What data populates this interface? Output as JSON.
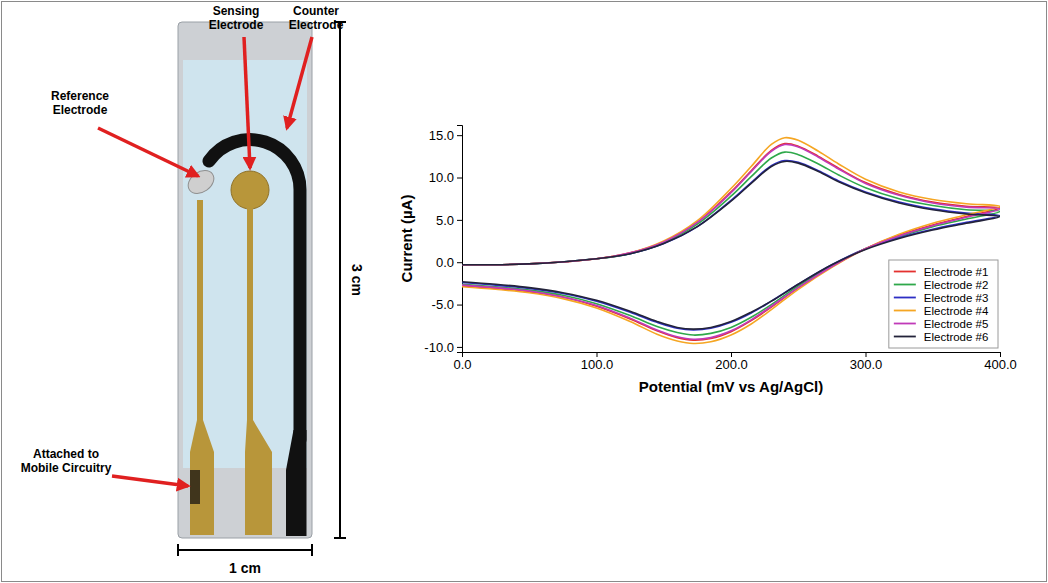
{
  "chart_data": {
    "type": "line",
    "x_label": "Potential (mV vs Ag/AgCl)",
    "y_label": "Current (µA)",
    "xlim": [
      0,
      400
    ],
    "ylim": [
      -10.6,
      16.2
    ],
    "xticks": [
      {
        "value": 0,
        "label": "0.0"
      },
      {
        "value": 100,
        "label": "100.0"
      },
      {
        "value": 200,
        "label": "200.0"
      },
      {
        "value": 300,
        "label": "300.0"
      },
      {
        "value": 400,
        "label": "400.0"
      }
    ],
    "yticks": [
      {
        "value": -10,
        "label": "-10.0"
      },
      {
        "value": -5,
        "label": "-5.0"
      },
      {
        "value": 0,
        "label": "0.0"
      },
      {
        "value": 5,
        "label": "5.0"
      },
      {
        "value": 10,
        "label": "10.0"
      },
      {
        "value": 15,
        "label": "15.0"
      }
    ],
    "grid": false,
    "legend": "lower right",
    "x": [
      0,
      50,
      100,
      125,
      150,
      175,
      200,
      215,
      230,
      240,
      250,
      265,
      280,
      300,
      325,
      350,
      375,
      400,
      375,
      350,
      325,
      300,
      275,
      250,
      230,
      215,
      200,
      185,
      172,
      160,
      145,
      125,
      100,
      75,
      50,
      25,
      0
    ],
    "series": [
      {
        "name": "Electrode #1",
        "color": "#e4312f",
        "values": [
          -0.3,
          -0.2,
          0.4,
          1.1,
          2.4,
          4.7,
          8.3,
          10.8,
          13.2,
          14.0,
          13.7,
          12.5,
          11.1,
          9.4,
          8.0,
          7.1,
          6.6,
          6.4,
          5.4,
          4.4,
          3.2,
          1.6,
          -0.5,
          -3.0,
          -5.3,
          -6.9,
          -8.2,
          -9.0,
          -9.2,
          -8.9,
          -8.1,
          -6.7,
          -5.2,
          -4.1,
          -3.5,
          -3.1,
          -2.8
        ]
      },
      {
        "name": "Electrode #2",
        "color": "#2ea84a",
        "values": [
          -0.3,
          -0.2,
          0.4,
          1.0,
          2.3,
          4.5,
          7.8,
          10.1,
          12.3,
          13.0,
          12.7,
          11.6,
          10.3,
          8.8,
          7.5,
          6.7,
          6.2,
          6.0,
          5.1,
          4.2,
          3.0,
          1.6,
          -0.4,
          -2.8,
          -5.0,
          -6.5,
          -7.7,
          -8.4,
          -8.6,
          -8.3,
          -7.6,
          -6.3,
          -4.9,
          -3.9,
          -3.3,
          -2.9,
          -2.6
        ]
      },
      {
        "name": "Electrode #3",
        "color": "#2d2fc4",
        "values": [
          -0.3,
          -0.2,
          0.4,
          1.0,
          2.2,
          4.2,
          7.3,
          9.4,
          11.4,
          12.0,
          11.8,
          10.8,
          9.6,
          8.3,
          7.1,
          6.3,
          5.8,
          5.5,
          4.7,
          3.9,
          2.9,
          1.6,
          -0.3,
          -2.6,
          -4.6,
          -6.0,
          -7.1,
          -7.8,
          -8.0,
          -7.8,
          -7.1,
          -5.9,
          -4.6,
          -3.7,
          -3.1,
          -2.7,
          -2.4
        ]
      },
      {
        "name": "Electrode #4",
        "color": "#f5a623",
        "values": [
          -0.3,
          -0.2,
          0.4,
          1.1,
          2.5,
          4.9,
          8.7,
          11.3,
          13.9,
          14.7,
          14.4,
          13.1,
          11.6,
          9.8,
          8.3,
          7.4,
          6.9,
          6.6,
          5.6,
          4.6,
          3.3,
          1.6,
          -0.6,
          -3.2,
          -5.6,
          -7.3,
          -8.6,
          -9.4,
          -9.6,
          -9.3,
          -8.5,
          -7.0,
          -5.4,
          -4.3,
          -3.6,
          -3.2,
          -2.9
        ]
      },
      {
        "name": "Electrode #5",
        "color": "#c03ab8",
        "values": [
          -0.3,
          -0.2,
          0.4,
          1.1,
          2.4,
          4.7,
          8.2,
          10.7,
          13.1,
          13.9,
          13.6,
          12.4,
          11.0,
          9.3,
          7.9,
          7.0,
          6.5,
          6.3,
          5.3,
          4.3,
          3.1,
          1.6,
          -0.5,
          -3.0,
          -5.2,
          -6.8,
          -8.1,
          -8.9,
          -9.1,
          -8.8,
          -8.0,
          -6.6,
          -5.1,
          -4.1,
          -3.4,
          -3.0,
          -2.7
        ]
      },
      {
        "name": "Electrode #6",
        "color": "#23233a",
        "values": [
          -0.3,
          -0.2,
          0.4,
          1.0,
          2.2,
          4.2,
          7.2,
          9.3,
          11.3,
          11.9,
          11.7,
          10.7,
          9.5,
          8.2,
          7.0,
          6.2,
          5.7,
          5.4,
          4.6,
          3.8,
          2.8,
          1.5,
          -0.3,
          -2.6,
          -4.6,
          -5.9,
          -7.0,
          -7.7,
          -7.9,
          -7.7,
          -7.0,
          -5.8,
          -4.5,
          -3.6,
          -3.0,
          -2.6,
          -2.3
        ]
      }
    ]
  },
  "diagram": {
    "callouts": [
      {
        "lines": [
          "Reference",
          "Electrode"
        ]
      },
      {
        "lines": [
          "Sensing",
          "Electrode"
        ]
      },
      {
        "lines": [
          "Counter",
          "Electrode"
        ]
      },
      {
        "lines": [
          "Attached to",
          "Mobile Circuitry"
        ]
      }
    ],
    "height_label": "3 cm",
    "width_label": "1 cm"
  }
}
